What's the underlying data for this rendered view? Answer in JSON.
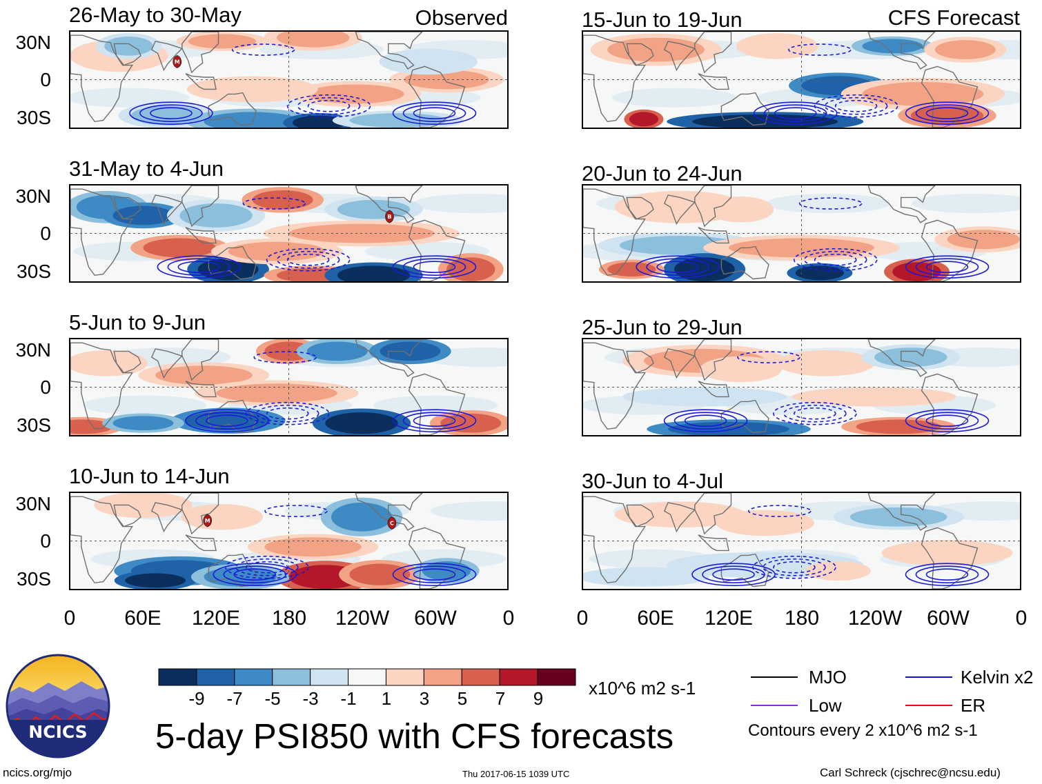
{
  "headers": {
    "observed": "Observed",
    "forecast": "CFS Forecast"
  },
  "observed_panels": [
    {
      "period": "26-May to 30-May",
      "markers": [
        {
          "lon": 88,
          "lat": 15,
          "label": "M"
        }
      ]
    },
    {
      "period": "31-May to 4-Jun",
      "markers": [
        {
          "lon": 263,
          "lat": 14,
          "label": "B"
        }
      ]
    },
    {
      "period": "5-Jun to 9-Jun",
      "markers": []
    },
    {
      "period": "10-Jun to 14-Jun",
      "markers": [
        {
          "lon": 113,
          "lat": 17,
          "label": "M"
        },
        {
          "lon": 265,
          "lat": 15,
          "label": "C"
        }
      ]
    }
  ],
  "forecast_panels": [
    {
      "period": "15-Jun to 19-Jun",
      "markers": []
    },
    {
      "period": "20-Jun to 24-Jun",
      "markers": []
    },
    {
      "period": "25-Jun to 29-Jun",
      "markers": []
    },
    {
      "period": "30-Jun to 4-Jul",
      "markers": []
    }
  ],
  "lat_labels": [
    "30N",
    "0",
    "30S"
  ],
  "lon_labels": [
    "0",
    "60E",
    "120E",
    "180",
    "120W",
    "60W",
    "0"
  ],
  "colorbar": {
    "colors": [
      "#0b2f5c",
      "#1f62a8",
      "#3d8ac4",
      "#8bbfdc",
      "#d0e3f0",
      "#f7f7f7",
      "#fbd5c2",
      "#f2a385",
      "#d7604f",
      "#b3182a",
      "#67001f"
    ],
    "tick_labels": [
      "-9",
      "-7",
      "-5",
      "-3",
      "-1",
      "1",
      "3",
      "5",
      "7",
      "9"
    ],
    "units": "x10^6 m2 s-1"
  },
  "legend": {
    "items": [
      {
        "label": "MJO",
        "color": "#000000"
      },
      {
        "label": "Kelvin x2",
        "color": "#0a14d8"
      },
      {
        "label": "Low",
        "color": "#8a2be2"
      },
      {
        "label": "ER",
        "color": "#e01010"
      }
    ],
    "contour_note": "Contours every 2 x10^6 m2 s-1"
  },
  "title": "5-day PSI850 with CFS forecasts",
  "logo_text": "NCICS",
  "footer": {
    "url": "ncics.org/mjo",
    "timestamp": "Thu 2017-06-15 1039 UTC",
    "author": "Carl Schreck (cjschrec@ncsu.edu)"
  },
  "colors": {
    "contour_blue": "#1a1adc",
    "land_outline": "#6f6f6f",
    "marker": "#b01818"
  }
}
